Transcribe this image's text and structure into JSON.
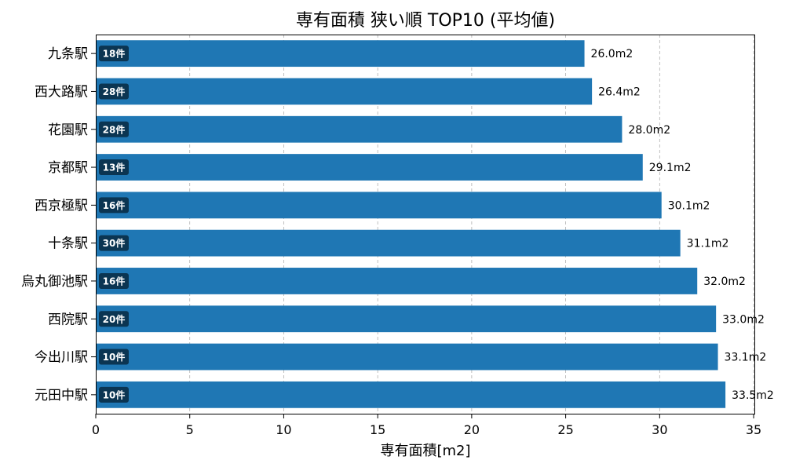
{
  "chart_data": {
    "type": "bar",
    "orientation": "horizontal",
    "title": "専有面積 狭い順 TOP10 (平均値)",
    "xlabel": "専有面積[m2]",
    "ylabel": "",
    "xlim": [
      0,
      35
    ],
    "xticks": [
      0,
      5,
      10,
      15,
      20,
      25,
      30,
      35
    ],
    "grid": "vertical-dashed",
    "bar_color": "#1f77b4",
    "badge_color": "#0b3552",
    "value_suffix": "m2",
    "categories": [
      "九条駅",
      "西大路駅",
      "花園駅",
      "京都駅",
      "西京極駅",
      "十条駅",
      "烏丸御池駅",
      "西院駅",
      "今出川駅",
      "元田中駅"
    ],
    "values": [
      26.0,
      26.4,
      28.0,
      29.1,
      30.1,
      31.1,
      32.0,
      33.0,
      33.1,
      33.5
    ],
    "value_labels": [
      "26.0m2",
      "26.4m2",
      "28.0m2",
      "29.1m2",
      "30.1m2",
      "31.1m2",
      "32.0m2",
      "33.0m2",
      "33.1m2",
      "33.5m2"
    ],
    "count_labels": [
      "18件",
      "28件",
      "28件",
      "13件",
      "16件",
      "30件",
      "16件",
      "20件",
      "10件",
      "10件"
    ]
  }
}
